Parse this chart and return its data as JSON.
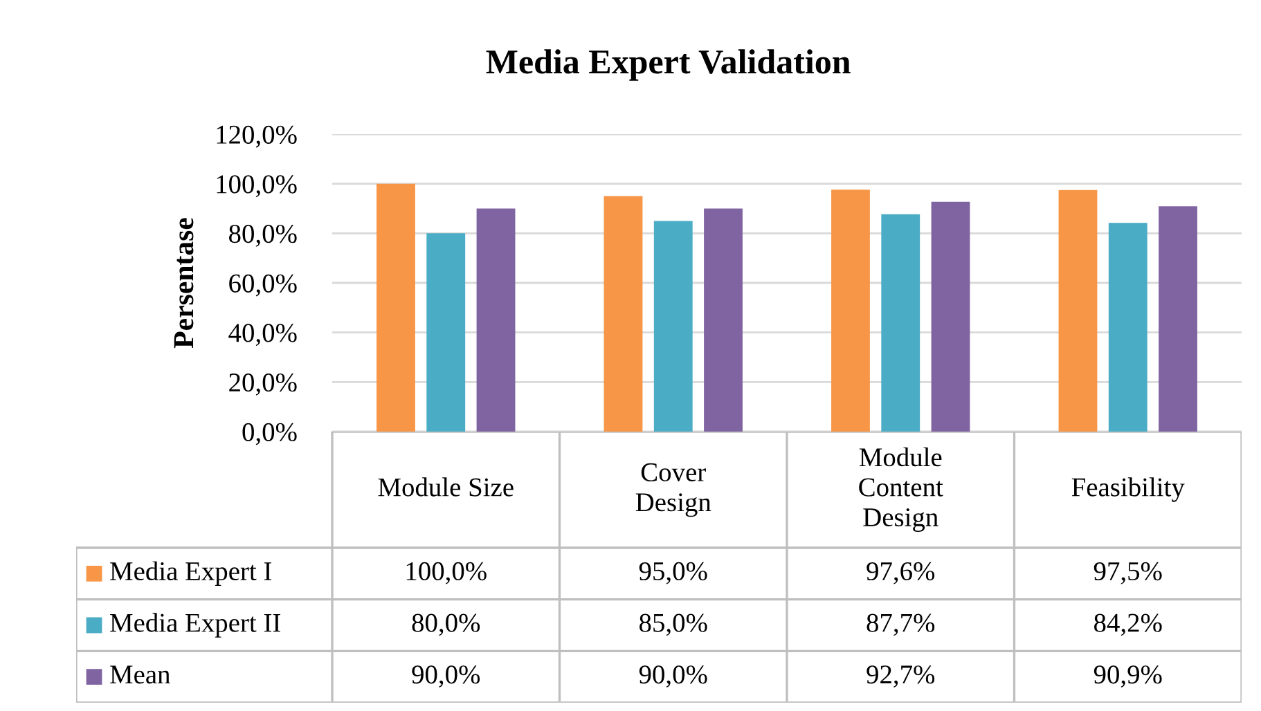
{
  "chart_data": {
    "type": "bar",
    "title": "Media Expert Validation",
    "ylabel": "Persentase",
    "categories": [
      "Module Size",
      "Cover Design",
      "Module Content Design",
      "Feasibility"
    ],
    "series": [
      {
        "name": "Media Expert I",
        "color": "#f79646",
        "values": [
          100.0,
          95.0,
          97.6,
          97.5
        ],
        "value_labels": [
          "100,0%",
          "95,0%",
          "97,6%",
          "97,5%"
        ]
      },
      {
        "name": "Media Expert II",
        "color": "#4bacc6",
        "values": [
          80.0,
          85.0,
          87.7,
          84.2
        ],
        "value_labels": [
          "80,0%",
          "85,0%",
          "87,7%",
          "84,2%"
        ]
      },
      {
        "name": "Mean",
        "color": "#8064a2",
        "values": [
          90.0,
          90.0,
          92.7,
          90.9
        ],
        "value_labels": [
          "90,0%",
          "90,0%",
          "92,7%",
          "90,9%"
        ]
      }
    ],
    "ylim": [
      0,
      120
    ],
    "yticks": [
      {
        "value": 0,
        "label": "0,0%"
      },
      {
        "value": 20,
        "label": "20,0%"
      },
      {
        "value": 40,
        "label": "40,0%"
      },
      {
        "value": 60,
        "label": "60,0%"
      },
      {
        "value": 80,
        "label": "80,0%"
      },
      {
        "value": 100,
        "label": "100,0%"
      },
      {
        "value": 120,
        "label": "120,0%"
      }
    ],
    "grid": "y",
    "legend": "bottom"
  }
}
